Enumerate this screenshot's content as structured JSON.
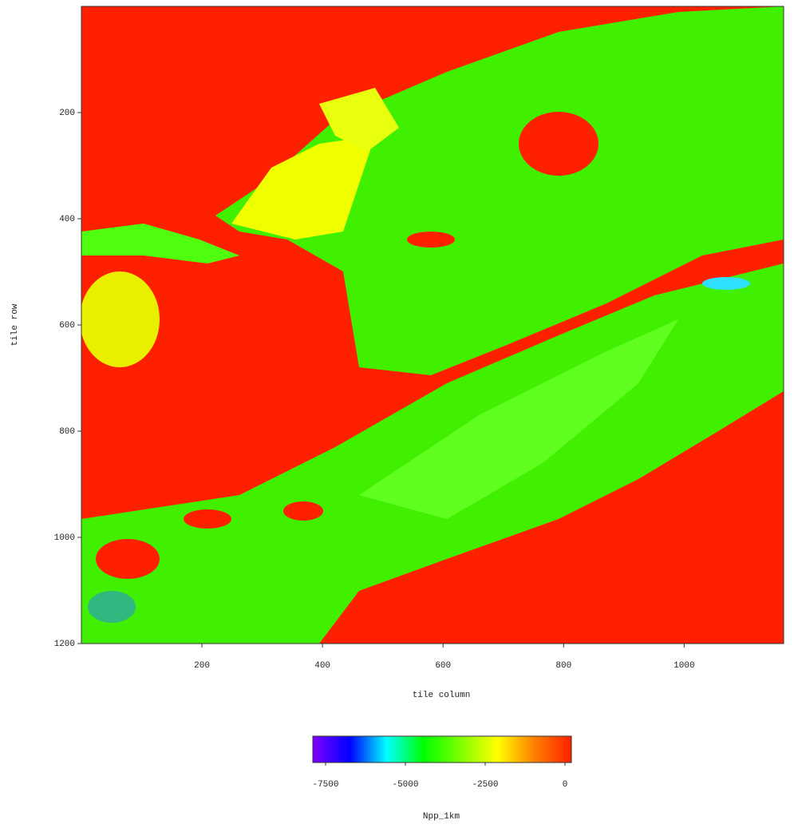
{
  "chart_data": {
    "type": "heatmap",
    "xlabel": "tile column",
    "ylabel": "tile row",
    "xlim": [
      0,
      1165
    ],
    "xticks": [
      200,
      400,
      600,
      800,
      1000
    ],
    "ylim": [
      0,
      1200
    ],
    "y_inverted": true,
    "yticks": [
      200,
      400,
      600,
      800,
      1000,
      1200
    ],
    "colorbar": {
      "label": "Npp_1km",
      "lim": [
        -7900,
        200
      ],
      "ticks": [
        -7500,
        -5000,
        -2500,
        0
      ],
      "colors": [
        "#8000ff",
        "#0000ff",
        "#00ffff",
        "#00ff00",
        "#80ff00",
        "#ffff00",
        "#ff8000",
        "#ff2000"
      ]
    }
  }
}
